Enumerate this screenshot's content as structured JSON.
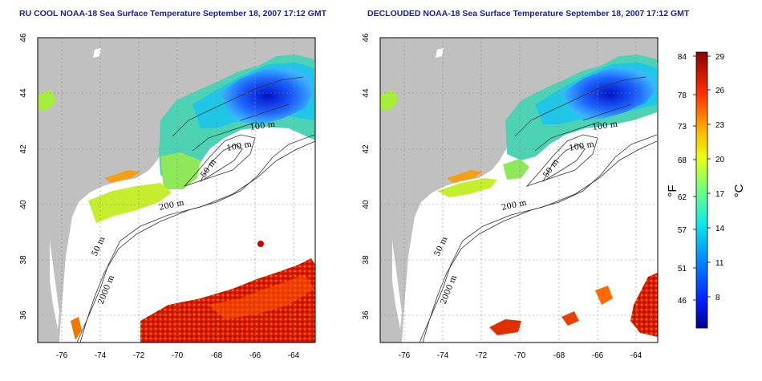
{
  "titles": {
    "left": "RU COOL NOAA-18 Sea Surface Temperature September 18, 2007 17:12 GMT",
    "right": "DECLOUDED NOAA-18 Sea Surface Temperature September 18, 2007 17:12 GMT"
  },
  "axes": {
    "x_ticks": [
      "-76",
      "-74",
      "-72",
      "-70",
      "-68",
      "-66",
      "-64"
    ],
    "y_ticks": [
      "46",
      "44",
      "42",
      "40",
      "38",
      "36"
    ]
  },
  "contour_labels": [
    "100 m",
    "100 m",
    "50 m",
    "200 m",
    "50 m",
    "2000 m"
  ],
  "colorbar": {
    "fahrenheit_ticks": [
      "84",
      "78",
      "73",
      "68",
      "62",
      "57",
      "51",
      "46"
    ],
    "celsius_ticks": [
      "29",
      "26",
      "23",
      "20",
      "17",
      "14",
      "11",
      "8"
    ],
    "fahrenheit_unit": "°F",
    "celsius_unit": "°C",
    "range_c": [
      5,
      29
    ]
  },
  "colors": {
    "land": "#c0c0c0",
    "title": "#1a1aa8"
  }
}
